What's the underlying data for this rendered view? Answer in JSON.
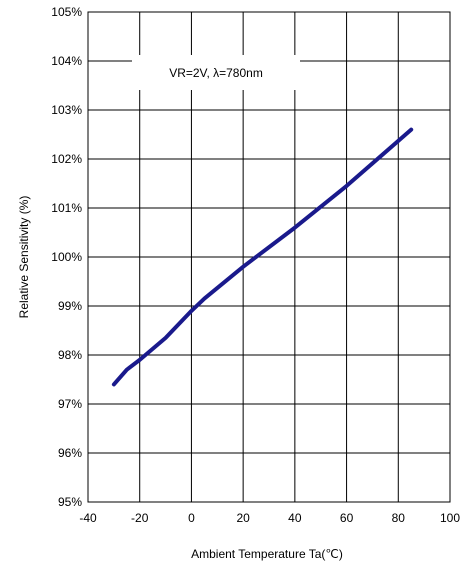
{
  "chart_data": {
    "type": "line",
    "title": "",
    "xlabel": "Ambient Temperature Ta(℃)",
    "ylabel": "Relative Sensitivity (%)",
    "annotation": "VR=2V, λ=780nm",
    "xlim": [
      -40,
      100
    ],
    "ylim": [
      95,
      105
    ],
    "x_ticks": [
      "-40",
      "-20",
      "0",
      "20",
      "40",
      "60",
      "80",
      "100"
    ],
    "y_ticks": [
      "95%",
      "96%",
      "97%",
      "98%",
      "99%",
      "100%",
      "101%",
      "102%",
      "103%",
      "104%",
      "105%"
    ],
    "grid": true,
    "series": [
      {
        "color": "#1a1a8c",
        "x": [
          -30,
          -25,
          -20,
          -10,
          0,
          5,
          20,
          40,
          60,
          85
        ],
        "y": [
          97.4,
          97.7,
          97.9,
          98.35,
          98.9,
          99.15,
          99.8,
          100.6,
          101.45,
          102.6
        ]
      }
    ]
  }
}
